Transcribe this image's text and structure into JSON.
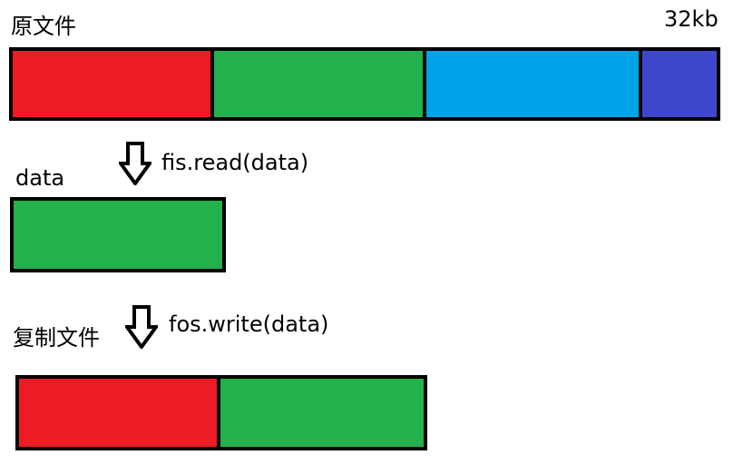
{
  "original_file": {
    "title": "原文件",
    "size_label": "32kb",
    "segments": [
      {
        "name": "red",
        "color": "#ED1C24"
      },
      {
        "name": "green",
        "color": "#22B14C"
      },
      {
        "name": "blue",
        "color": "#00A2E8"
      },
      {
        "name": "indigo",
        "color": "#3F48CC"
      }
    ]
  },
  "read_step": {
    "arrow_icon": "down-arrow-icon",
    "code": "fis.read(data)"
  },
  "data_buffer": {
    "title": "data",
    "segments": [
      {
        "name": "green",
        "color": "#22B14C"
      }
    ]
  },
  "write_step": {
    "arrow_icon": "down-arrow-icon",
    "code": "fos.write(data)"
  },
  "copied_file": {
    "title": "复制文件",
    "segments": [
      {
        "name": "red",
        "color": "#ED1C24"
      },
      {
        "name": "green",
        "color": "#22B14C"
      }
    ]
  }
}
